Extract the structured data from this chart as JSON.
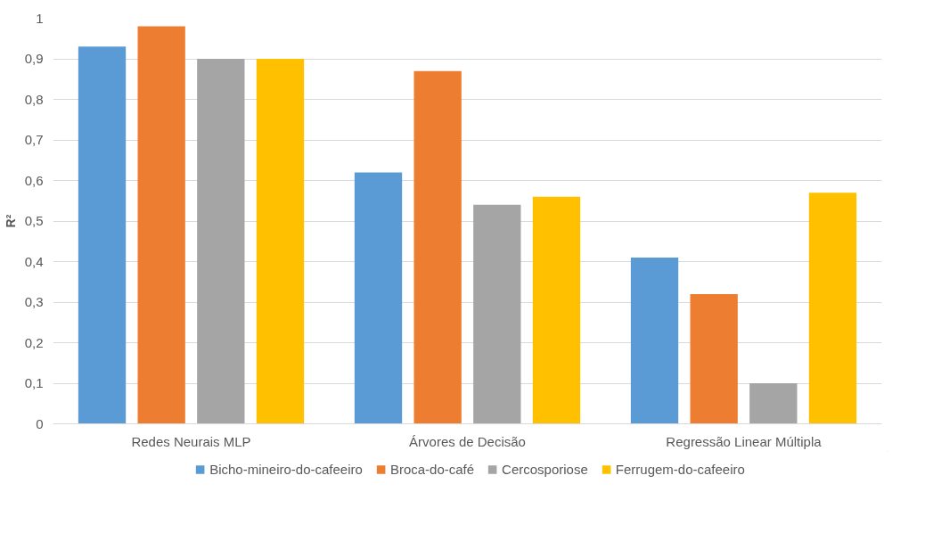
{
  "chart_data": {
    "type": "bar",
    "ylabel": "R²",
    "categories": [
      "Redes Neurais MLP",
      "Árvores de Decisão",
      "Regressão Linear Múltipla"
    ],
    "series": [
      {
        "name": "Bicho-mineiro-do-cafeeiro",
        "color": "#5b9bd5",
        "values": [
          0.93,
          0.62,
          0.41
        ]
      },
      {
        "name": "Broca-do-café",
        "color": "#ed7d31",
        "values": [
          0.98,
          0.87,
          0.32
        ]
      },
      {
        "name": "Cercosporiose",
        "color": "#a5a5a5",
        "values": [
          0.9,
          0.54,
          0.1
        ]
      },
      {
        "name": "Ferrugem-do-cafeeiro",
        "color": "#ffc000",
        "values": [
          0.9,
          0.56,
          0.57
        ]
      }
    ],
    "ylim": [
      0,
      1
    ],
    "yticks": [
      0,
      {
        "value": 0.1,
        "label": "0,1"
      },
      {
        "value": 0.2,
        "label": "0,2"
      },
      {
        "value": 0.3,
        "label": "0,3"
      },
      {
        "value": 0.4,
        "label": "0,4"
      },
      {
        "value": 0.5,
        "label": "0,5"
      },
      {
        "value": 0.6,
        "label": "0,6"
      },
      {
        "value": 0.7,
        "label": "0,7"
      },
      {
        "value": 0.8,
        "label": "0,8"
      },
      {
        "value": 0.9,
        "label": "0,9"
      },
      1
    ],
    "grid": "y",
    "legend": "bottom"
  }
}
